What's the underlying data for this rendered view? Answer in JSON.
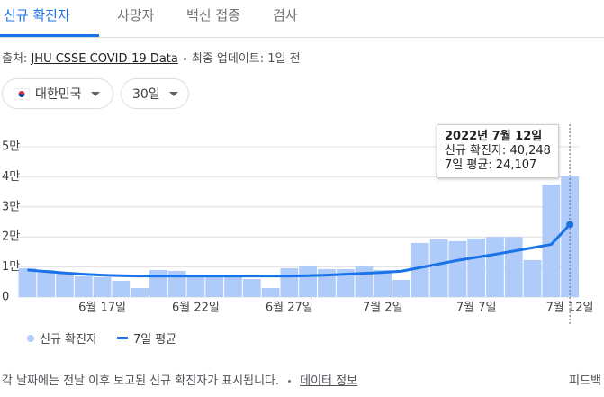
{
  "tabs": [
    "신규 확진자",
    "사망자",
    "백신 접종",
    "검사"
  ],
  "source": {
    "label": "출처:",
    "link": "JHU CSSE COVID-19 Data",
    "updated": "최종 업데이트: 1일 전"
  },
  "filters": {
    "region": "대한민국",
    "period": "30일"
  },
  "chart_data": {
    "type": "bar_line",
    "categories": [
      null,
      null,
      null,
      null,
      "6월 17일",
      null,
      null,
      null,
      null,
      "6월 22일",
      null,
      null,
      null,
      null,
      "6월 27일",
      null,
      null,
      null,
      null,
      "7월 2일",
      null,
      null,
      null,
      null,
      "7월 7일",
      null,
      null,
      null,
      null,
      "7월 12일"
    ],
    "series": [
      {
        "name": "신규 확진자",
        "color": "#aecbfa",
        "kind": "bar",
        "values": [
          9600,
          9000,
          8100,
          6900,
          6600,
          5400,
          3000,
          9000,
          8700,
          6600,
          6600,
          6600,
          6000,
          3000,
          9600,
          10200,
          9300,
          9300,
          10200,
          9000,
          5700,
          18000,
          19200,
          18600,
          19500,
          20000,
          20000,
          12300,
          37400,
          40248
        ]
      },
      {
        "name": "7일 평균",
        "color": "#1a73e8",
        "kind": "line",
        "values": [
          9000,
          8500,
          8000,
          7600,
          7300,
          7100,
          7000,
          7000,
          7000,
          7000,
          7000,
          7000,
          7000,
          7000,
          7000,
          7100,
          7300,
          7600,
          7900,
          8200,
          8600,
          9800,
          11000,
          12200,
          13200,
          14200,
          15300,
          16400,
          17500,
          24107
        ]
      }
    ],
    "ylim": [
      0,
      50000
    ],
    "yticks": [
      {
        "value": 0,
        "label": "0"
      },
      {
        "value": 10000,
        "label": "1만"
      },
      {
        "value": 20000,
        "label": "2만"
      },
      {
        "value": 30000,
        "label": "3만"
      },
      {
        "value": 40000,
        "label": "4만"
      },
      {
        "value": 50000,
        "label": "5만"
      }
    ],
    "grid": true,
    "tooltip": {
      "title": "2022년 7월 12일",
      "lines": [
        "신규 확진자: 40,248",
        "7일 평균: 24,107"
      ]
    }
  },
  "footer": {
    "note": "각 날짜에는 전날 이후 보고된 신규 확진자가 표시됩니다.",
    "link": "데이터 정보",
    "feedback": "피드백"
  }
}
